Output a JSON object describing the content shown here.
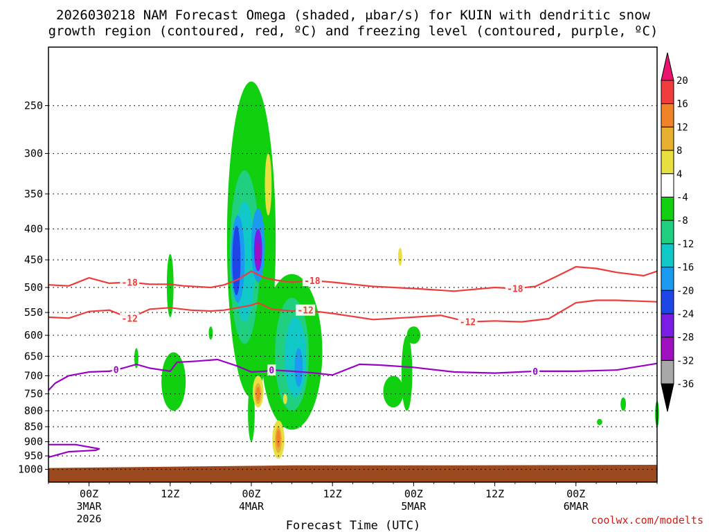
{
  "title": {
    "line1": "2026030218 NAM Forecast Omega (shaded, μbar/s) for KUIN with dendritic snow",
    "line2": "growth region (contoured, red, ºC) and freezing level (contoured, purple, ºC)"
  },
  "credit": "coolwx.com/modelts",
  "chart_data": {
    "type": "heatmap",
    "xlabel": "Forecast Time (UTC)",
    "ylabel": "",
    "y_axis": {
      "scale": "log",
      "inverted": true,
      "range": [
        1050,
        200
      ],
      "ticks": [
        "250",
        "300",
        "350",
        "400",
        "450",
        "500",
        "550",
        "600",
        "650",
        "700",
        "750",
        "800",
        "850",
        "900",
        "950",
        "1000"
      ]
    },
    "x_axis": {
      "range_hours": [
        -6,
        84
      ],
      "ticks": [
        {
          "hour": 0,
          "label": "00Z",
          "sub1": "3MAR",
          "sub2": "2026"
        },
        {
          "hour": 12,
          "label": "12Z",
          "sub1": "",
          "sub2": ""
        },
        {
          "hour": 24,
          "label": "00Z",
          "sub1": "4MAR",
          "sub2": ""
        },
        {
          "hour": 36,
          "label": "12Z",
          "sub1": "",
          "sub2": ""
        },
        {
          "hour": 48,
          "label": "00Z",
          "sub1": "5MAR",
          "sub2": ""
        },
        {
          "hour": 60,
          "label": "12Z",
          "sub1": "",
          "sub2": ""
        },
        {
          "hour": 72,
          "label": "00Z",
          "sub1": "6MAR",
          "sub2": ""
        }
      ]
    },
    "grid": true,
    "colorbar": {
      "labels": [
        "20",
        "16",
        "12",
        "8",
        "4",
        "-4",
        "-8",
        "-12",
        "-16",
        "-20",
        "-24",
        "-28",
        "-32",
        "-36"
      ],
      "colors": [
        "#e8146e",
        "#f03c3c",
        "#f08228",
        "#e8b030",
        "#e8e040",
        "#ffffff",
        "#10d010",
        "#20d080",
        "#10c8c8",
        "#1a9af0",
        "#1e46e6",
        "#7a1ee6",
        "#a010c0",
        "#a8a8a8",
        "#000000"
      ]
    },
    "contours": [
      {
        "value": "-18",
        "color": "#ee3b3b",
        "labels": [
          {
            "hour": 6,
            "value": "-18"
          },
          {
            "hour": 33,
            "value": "-18"
          },
          {
            "hour": 63,
            "value": "-18"
          }
        ],
        "points": [
          [
            -6,
            495
          ],
          [
            -3,
            497
          ],
          [
            0,
            482
          ],
          [
            3,
            492
          ],
          [
            6,
            490
          ],
          [
            9,
            494
          ],
          [
            12,
            494
          ],
          [
            14,
            497
          ],
          [
            18,
            500
          ],
          [
            20,
            495
          ],
          [
            22,
            485
          ],
          [
            24,
            470
          ],
          [
            26,
            482
          ],
          [
            28,
            487
          ],
          [
            30,
            490
          ],
          [
            33,
            487
          ],
          [
            36,
            490
          ],
          [
            42,
            498
          ],
          [
            48,
            502
          ],
          [
            54,
            507
          ],
          [
            60,
            500
          ],
          [
            63,
            502
          ],
          [
            66,
            498
          ],
          [
            69,
            480
          ],
          [
            72,
            462
          ],
          [
            75,
            465
          ],
          [
            78,
            472
          ],
          [
            82,
            478
          ],
          [
            84,
            470
          ]
        ]
      },
      {
        "value": "-12",
        "color": "#ee3b3b",
        "labels": [
          {
            "hour": 6,
            "value": "-12"
          },
          {
            "hour": 32,
            "value": "-12"
          },
          {
            "hour": 56,
            "value": "-12"
          }
        ],
        "points": [
          [
            -6,
            560
          ],
          [
            -3,
            562
          ],
          [
            0,
            548
          ],
          [
            3,
            545
          ],
          [
            6,
            562
          ],
          [
            9,
            543
          ],
          [
            12,
            540
          ],
          [
            15,
            545
          ],
          [
            18,
            547
          ],
          [
            20,
            545
          ],
          [
            22,
            540
          ],
          [
            24,
            535
          ],
          [
            25,
            530
          ],
          [
            27,
            543
          ],
          [
            30,
            547
          ],
          [
            32,
            545
          ],
          [
            36,
            552
          ],
          [
            42,
            565
          ],
          [
            48,
            560
          ],
          [
            52,
            556
          ],
          [
            56,
            570
          ],
          [
            60,
            568
          ],
          [
            64,
            570
          ],
          [
            68,
            563
          ],
          [
            71,
            538
          ],
          [
            72,
            530
          ],
          [
            75,
            525
          ],
          [
            78,
            525
          ],
          [
            84,
            528
          ]
        ]
      },
      {
        "value": "0",
        "color": "#9a00c8",
        "labels": [
          {
            "hour": 4,
            "value": "0"
          },
          {
            "hour": 27,
            "value": "0"
          },
          {
            "hour": 66,
            "value": "0"
          }
        ],
        "points": [
          [
            -6,
            740
          ],
          [
            -5,
            720
          ],
          [
            -3,
            700
          ],
          [
            0,
            690
          ],
          [
            3,
            688
          ],
          [
            5,
            680
          ],
          [
            7,
            670
          ],
          [
            9,
            680
          ],
          [
            12,
            688
          ],
          [
            13,
            665
          ],
          [
            16,
            662
          ],
          [
            19,
            658
          ],
          [
            22,
            675
          ],
          [
            24,
            690
          ],
          [
            26,
            688
          ],
          [
            27,
            685
          ],
          [
            30,
            688
          ],
          [
            33,
            692
          ],
          [
            36,
            698
          ],
          [
            40,
            670
          ],
          [
            43,
            672
          ],
          [
            48,
            678
          ],
          [
            54,
            690
          ],
          [
            60,
            693
          ],
          [
            66,
            688
          ],
          [
            72,
            688
          ],
          [
            78,
            685
          ],
          [
            84,
            668
          ]
        ]
      },
      {
        "value": "0",
        "color": "#9a00c8",
        "labels": [],
        "points": [
          [
            -6,
            955
          ],
          [
            -3,
            935
          ],
          [
            1,
            930
          ],
          [
            1.5,
            925
          ],
          [
            -2,
            910
          ],
          [
            -6,
            910
          ]
        ]
      }
    ],
    "omega_regions": [
      {
        "value": -8,
        "hour": 24,
        "hw": 3.6,
        "ptop": 228,
        "pbot": 760
      },
      {
        "value": -12,
        "hour": 23,
        "hw": 2.2,
        "ptop": 320,
        "pbot": 620
      },
      {
        "value": -16,
        "hour": 23,
        "hw": 1.5,
        "ptop": 360,
        "pbot": 570
      },
      {
        "value": -20,
        "hour": 22,
        "hw": 1.0,
        "ptop": 380,
        "pbot": 530
      },
      {
        "value": -24,
        "hour": 21.8,
        "hw": 0.6,
        "ptop": 395,
        "pbot": 515
      },
      {
        "value": -20,
        "hour": 25,
        "hw": 1.0,
        "ptop": 370,
        "pbot": 490
      },
      {
        "value": -28,
        "hour": 25,
        "hw": 0.6,
        "ptop": 400,
        "pbot": 470
      },
      {
        "value": -32,
        "hour": 25,
        "hw": 0.35,
        "ptop": 420,
        "pbot": 460
      },
      {
        "value": -8,
        "hour": 30,
        "hw": 4.5,
        "ptop": 475,
        "pbot": 860
      },
      {
        "value": -12,
        "hour": 30,
        "hw": 2.5,
        "ptop": 520,
        "pbot": 800
      },
      {
        "value": -16,
        "hour": 30.5,
        "hw": 1.6,
        "ptop": 560,
        "pbot": 760
      },
      {
        "value": -20,
        "hour": 31,
        "hw": 0.6,
        "ptop": 630,
        "pbot": 730
      },
      {
        "value": -8,
        "hour": 12,
        "hw": 0.5,
        "ptop": 440,
        "pbot": 560
      },
      {
        "value": -8,
        "hour": 12.5,
        "hw": 1.8,
        "ptop": 640,
        "pbot": 800
      },
      {
        "value": -8,
        "hour": 7,
        "hw": 0.3,
        "ptop": 630,
        "pbot": 680
      },
      {
        "value": -8,
        "hour": 18,
        "hw": 0.3,
        "ptop": 580,
        "pbot": 610
      },
      {
        "value": -8,
        "hour": 24,
        "hw": 0.5,
        "ptop": 720,
        "pbot": 900
      },
      {
        "value": -8,
        "hour": 45,
        "hw": 1.5,
        "ptop": 700,
        "pbot": 790
      },
      {
        "value": -8,
        "hour": 48,
        "hw": 1.0,
        "ptop": 580,
        "pbot": 620
      },
      {
        "value": -8,
        "hour": 47,
        "hw": 0.8,
        "ptop": 600,
        "pbot": 800
      },
      {
        "value": -8,
        "hour": 79,
        "hw": 0.4,
        "ptop": 760,
        "pbot": 800
      },
      {
        "value": -8,
        "hour": 84,
        "hw": 0.3,
        "ptop": 770,
        "pbot": 850
      },
      {
        "value": -8,
        "hour": 75.5,
        "hw": 0.4,
        "ptop": 825,
        "pbot": 845
      },
      {
        "value": 4,
        "hour": 26.5,
        "hw": 0.5,
        "ptop": 300,
        "pbot": 380
      },
      {
        "value": 4,
        "hour": 46,
        "hw": 0.3,
        "ptop": 430,
        "pbot": 460
      },
      {
        "value": 4,
        "hour": 25,
        "hw": 0.8,
        "ptop": 700,
        "pbot": 790
      },
      {
        "value": 8,
        "hour": 25,
        "hw": 0.5,
        "ptop": 720,
        "pbot": 780
      },
      {
        "value": 12,
        "hour": 25,
        "hw": 0.3,
        "ptop": 730,
        "pbot": 770
      },
      {
        "value": 4,
        "hour": 28,
        "hw": 0.9,
        "ptop": 830,
        "pbot": 960
      },
      {
        "value": 8,
        "hour": 28,
        "hw": 0.5,
        "ptop": 850,
        "pbot": 940
      },
      {
        "value": 12,
        "hour": 28,
        "hw": 0.3,
        "ptop": 860,
        "pbot": 920
      },
      {
        "value": 4,
        "hour": 29,
        "hw": 0.3,
        "ptop": 750,
        "pbot": 780
      }
    ],
    "ground": {
      "color": "#9a4a1e",
      "pressures": [
        [
          -6,
          995
        ],
        [
          12,
          990
        ],
        [
          30,
          985
        ],
        [
          54,
          985
        ],
        [
          84,
          983
        ]
      ]
    }
  }
}
